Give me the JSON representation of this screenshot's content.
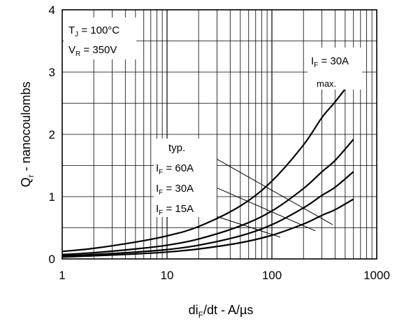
{
  "chart_data": {
    "type": "line",
    "x_scale": "log",
    "xlim": [
      1,
      1000
    ],
    "ylim": [
      0,
      4
    ],
    "grid": true,
    "xlabel": {
      "main": "di",
      "sub": "F",
      "rest": "/dt - A/µs"
    },
    "ylabel": {
      "main": "Q",
      "sub": "r",
      "rest": " - nanocoulombs"
    },
    "x_ticks": [
      "1",
      "10",
      "100",
      "1000"
    ],
    "y_ticks": [
      "0",
      "1",
      "2",
      "3",
      "4"
    ],
    "conditions": [
      {
        "main": "T",
        "sub": "J",
        "rest": " = 100°C"
      },
      {
        "main": "V",
        "sub": "R",
        "rest": " = 350V"
      }
    ],
    "labels": {
      "max_current": {
        "main": "I",
        "sub": "F",
        "rest": " = 30A"
      },
      "max": "max.",
      "typ": "typ.",
      "typ_60": {
        "main": "I",
        "sub": "F",
        "rest": " = 60A"
      },
      "typ_30": {
        "main": "I",
        "sub": "F",
        "rest": " = 30A"
      },
      "typ_15": {
        "main": "I",
        "sub": "F",
        "rest": " = 15A"
      }
    },
    "series": [
      {
        "x": [
          1,
          2,
          5,
          10,
          20,
          50,
          100,
          200,
          300,
          400,
          600
        ],
        "y": [
          0.12,
          0.17,
          0.27,
          0.37,
          0.52,
          0.85,
          1.25,
          1.83,
          2.27,
          2.52,
          2.9
        ]
      },
      {
        "x": [
          1,
          2,
          5,
          10,
          20,
          50,
          100,
          200,
          300,
          400,
          600
        ],
        "y": [
          0.07,
          0.1,
          0.16,
          0.22,
          0.32,
          0.53,
          0.77,
          1.13,
          1.4,
          1.58,
          1.92
        ]
      },
      {
        "x": [
          1,
          2,
          5,
          10,
          20,
          50,
          100,
          200,
          300,
          400,
          600
        ],
        "y": [
          0.05,
          0.07,
          0.11,
          0.15,
          0.22,
          0.37,
          0.55,
          0.82,
          1.02,
          1.15,
          1.4
        ]
      },
      {
        "x": [
          1,
          2,
          5,
          10,
          20,
          50,
          100,
          200,
          300,
          400,
          600
        ],
        "y": [
          0.03,
          0.05,
          0.08,
          0.11,
          0.16,
          0.26,
          0.38,
          0.56,
          0.7,
          0.79,
          0.96
        ]
      }
    ],
    "leaders": [
      {
        "from": [
          30,
          1.6
        ],
        "to": [
          380,
          0.55
        ]
      },
      {
        "from": [
          30,
          1.14
        ],
        "to": [
          260,
          0.45
        ]
      },
      {
        "from": [
          30,
          0.68
        ],
        "to": [
          120,
          0.35
        ]
      }
    ]
  }
}
